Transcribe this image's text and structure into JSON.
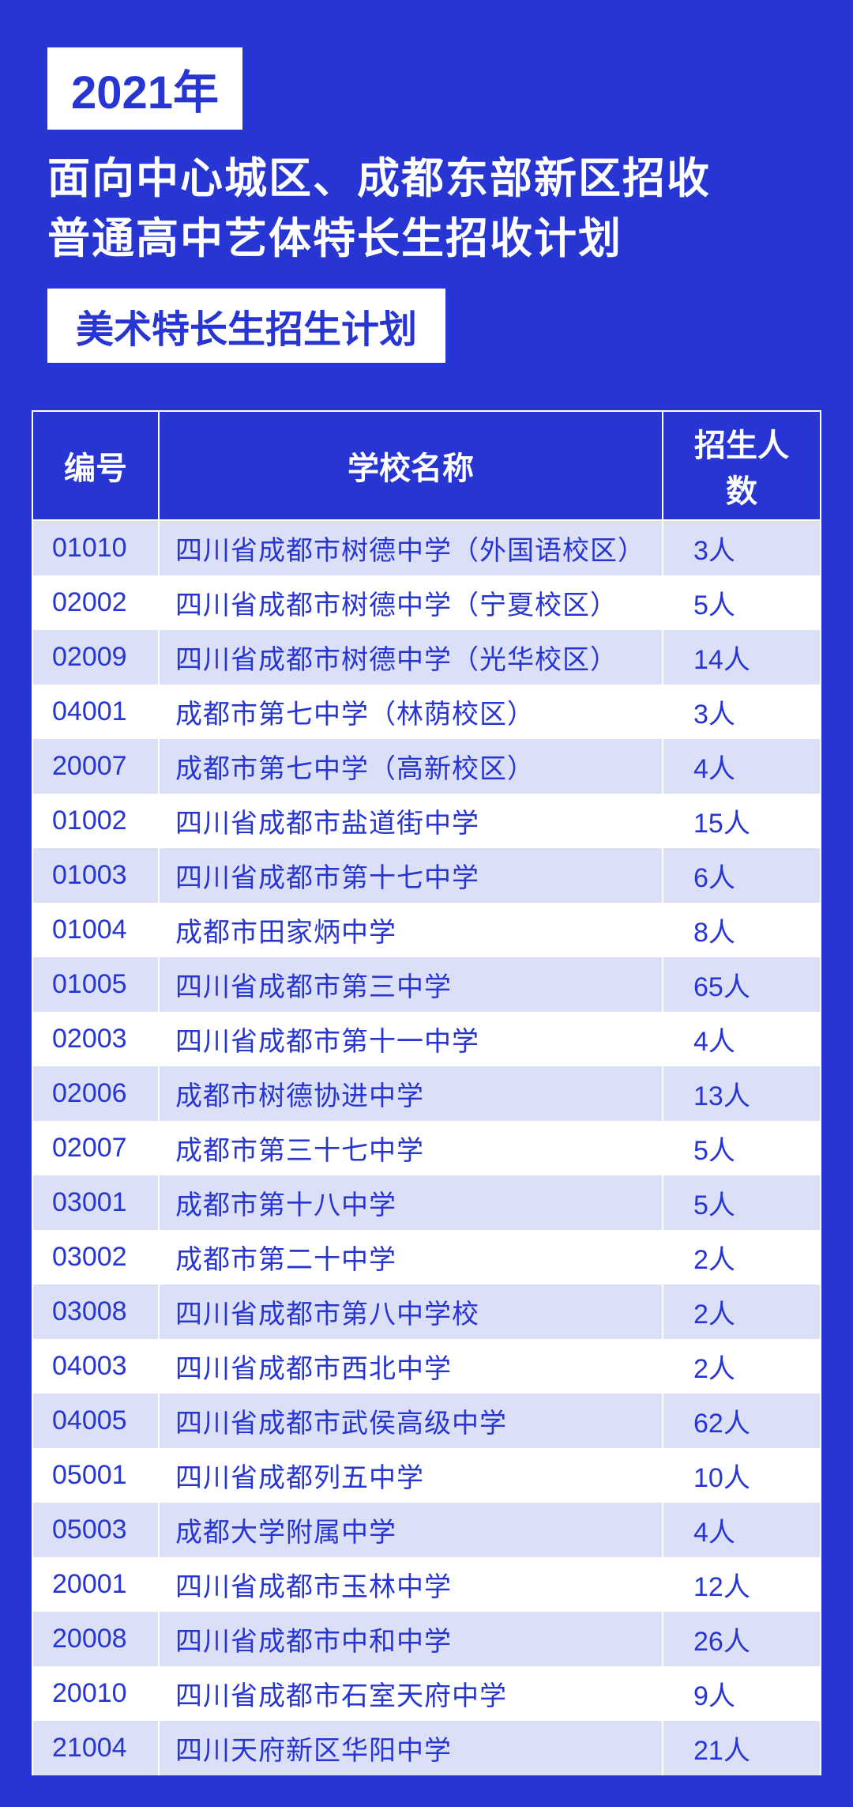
{
  "header": {
    "year_badge": "2021年",
    "title_line1": "面向中心城区、成都东部新区招收",
    "title_line2": "普通高中艺体特长生招收计划",
    "sub_badge": "美术特长生招生计划"
  },
  "table": {
    "columns": {
      "no": "编号",
      "name": "学校名称",
      "count": "招生人数"
    },
    "rows": [
      {
        "no": "01010",
        "name": "四川省成都市树德中学（外国语校区）",
        "count": "3人"
      },
      {
        "no": "02002",
        "name": "四川省成都市树德中学（宁夏校区）",
        "count": "5人"
      },
      {
        "no": "02009",
        "name": "四川省成都市树德中学（光华校区）",
        "count": "14人"
      },
      {
        "no": "04001",
        "name": "成都市第七中学（林荫校区）",
        "count": "3人"
      },
      {
        "no": "20007",
        "name": "成都市第七中学（高新校区）",
        "count": "4人"
      },
      {
        "no": "01002",
        "name": "四川省成都市盐道街中学",
        "count": "15人"
      },
      {
        "no": "01003",
        "name": "四川省成都市第十七中学",
        "count": "6人"
      },
      {
        "no": "01004",
        "name": "成都市田家炳中学",
        "count": "8人"
      },
      {
        "no": "01005",
        "name": "四川省成都市第三中学",
        "count": "65人"
      },
      {
        "no": "02003",
        "name": "四川省成都市第十一中学",
        "count": "4人"
      },
      {
        "no": "02006",
        "name": "成都市树德协进中学",
        "count": "13人"
      },
      {
        "no": "02007",
        "name": "成都市第三十七中学",
        "count": "5人"
      },
      {
        "no": "03001",
        "name": "成都市第十八中学",
        "count": "5人"
      },
      {
        "no": "03002",
        "name": "成都市第二十中学",
        "count": "2人"
      },
      {
        "no": "03008",
        "name": "四川省成都市第八中学校",
        "count": "2人"
      },
      {
        "no": "04003",
        "name": "四川省成都市西北中学",
        "count": "2人"
      },
      {
        "no": "04005",
        "name": "四川省成都市武侯高级中学",
        "count": "62人"
      },
      {
        "no": "05001",
        "name": "四川省成都列五中学",
        "count": "10人"
      },
      {
        "no": "05003",
        "name": "成都大学附属中学",
        "count": "4人"
      },
      {
        "no": "20001",
        "name": "四川省成都市玉林中学",
        "count": "12人"
      },
      {
        "no": "20008",
        "name": "四川省成都市中和中学",
        "count": "26人"
      },
      {
        "no": "20010",
        "name": "四川省成都市石室天府中学",
        "count": "9人"
      },
      {
        "no": "21004",
        "name": "四川天府新区华阳中学",
        "count": "21人"
      }
    ]
  },
  "colors": {
    "primary": "#2735d3",
    "white": "#ffffff",
    "row_odd": "#dce0f6",
    "row_even": "#ffffff"
  }
}
